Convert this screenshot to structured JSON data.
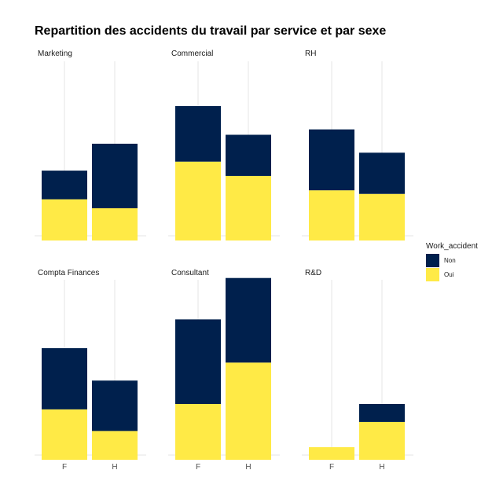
{
  "chart_data": {
    "type": "bar",
    "stacked": true,
    "faceted": true,
    "title": "Repartition des accidents du travail par service et par sexe",
    "xlabel": "",
    "ylabel": "",
    "categories": [
      "F",
      "H"
    ],
    "legend": {
      "title": "Work_accident",
      "placement": "right",
      "entries": [
        {
          "label": "Non",
          "color": "#00204D"
        },
        {
          "label": "Oui",
          "color": "#FFEA46"
        }
      ]
    },
    "grid": true,
    "ylim": [
      0,
      100
    ],
    "facets": [
      {
        "name": "Marketing",
        "series": [
          {
            "name": "Oui",
            "values": [
              23,
              18
            ]
          },
          {
            "name": "Non",
            "values": [
              16,
              36
            ]
          }
        ]
      },
      {
        "name": "Commercial",
        "series": [
          {
            "name": "Oui",
            "values": [
              44,
              36
            ]
          },
          {
            "name": "Non",
            "values": [
              31,
              23
            ]
          }
        ]
      },
      {
        "name": "RH",
        "series": [
          {
            "name": "Oui",
            "values": [
              28,
              26
            ]
          },
          {
            "name": "Non",
            "values": [
              34,
              23
            ]
          }
        ]
      },
      {
        "name": "Compta Finances",
        "series": [
          {
            "name": "Oui",
            "values": [
              28,
              16
            ]
          },
          {
            "name": "Non",
            "values": [
              34,
              28
            ]
          }
        ]
      },
      {
        "name": "Consultant",
        "series": [
          {
            "name": "Oui",
            "values": [
              31,
              54
            ]
          },
          {
            "name": "Non",
            "values": [
              47,
              47
            ]
          }
        ]
      },
      {
        "name": "R&D",
        "series": [
          {
            "name": "Oui",
            "values": [
              7,
              21
            ]
          },
          {
            "name": "Non",
            "values": [
              0,
              10
            ]
          }
        ]
      }
    ]
  }
}
